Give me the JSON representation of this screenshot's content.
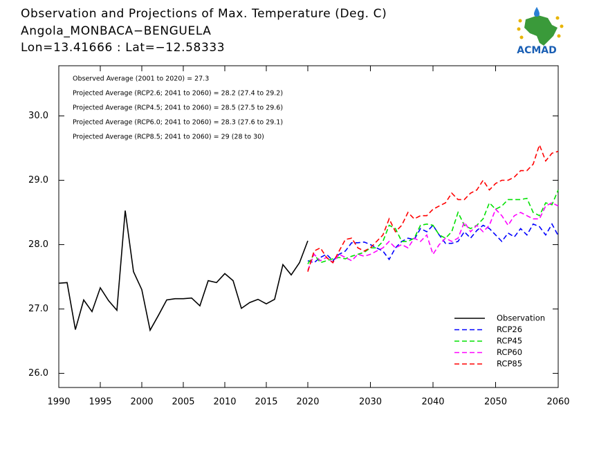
{
  "chart_data": {
    "type": "line",
    "title": [
      "Observation and Projections of Max. Temperature (Deg. C)",
      "Angola_MONBACA−BENGUELA",
      "Lon=13.41666 : Lat=−12.58333"
    ],
    "annotations": [
      "Observed Average (2001 to 2020) = 27.3",
      "Projected Average (RCP2.6; 2041 to 2060) = 28.2 (27.4 to 29.2)",
      "Projected Average (RCP4.5; 2041 to 2060) = 28.5 (27.5 to 29.6)",
      "Projected Average (RCP6.0; 2041 to 2060) = 28.3 (27.6 to 29.1)",
      "Projected Average (RCP8.5; 2041 to 2060) = 29 (28 to 30)"
    ],
    "logo": "ACMAD",
    "xlim": [
      1990,
      2060
    ],
    "xbreak": 2020,
    "xticks": [
      1990,
      1995,
      2000,
      2005,
      2010,
      2015,
      2020,
      2030,
      2040,
      2050,
      2060
    ],
    "ylim": [
      25.78,
      30.78
    ],
    "yticks": [
      {
        "value": 26,
        "label": "26.0"
      },
      {
        "value": 27,
        "label": "27.0"
      },
      {
        "value": 28,
        "label": "28.0"
      },
      {
        "value": 29,
        "label": "29.0"
      },
      {
        "value": 30,
        "label": "30.0"
      }
    ],
    "legend": "lower right",
    "series": [
      {
        "name": "Observation",
        "color": "#000000",
        "dashed": false,
        "x": [
          1990,
          1991,
          1992,
          1993,
          1994,
          1995,
          1996,
          1997,
          1998,
          1999,
          2000,
          2001,
          2002,
          2003,
          2004,
          2005,
          2006,
          2007,
          2008,
          2009,
          2010,
          2011,
          2012,
          2013,
          2014,
          2015,
          2016,
          2017,
          2018,
          2019,
          2020
        ],
        "values": [
          27.4,
          27.41,
          26.68,
          27.14,
          26.96,
          27.33,
          27.13,
          26.98,
          28.53,
          27.58,
          27.3,
          26.67,
          26.9,
          27.14,
          27.16,
          27.16,
          27.17,
          27.05,
          27.44,
          27.41,
          27.55,
          27.44,
          27.01,
          27.1,
          27.15,
          27.08,
          27.15,
          27.69,
          27.53,
          27.72,
          28.06
        ]
      },
      {
        "name": "RCP26",
        "color": "#0000ff",
        "dashed": true,
        "x": [
          2020,
          2021,
          2022,
          2023,
          2024,
          2025,
          2026,
          2027,
          2028,
          2029,
          2030,
          2031,
          2032,
          2033,
          2034,
          2035,
          2036,
          2037,
          2038,
          2039,
          2040,
          2041,
          2042,
          2043,
          2044,
          2045,
          2046,
          2047,
          2048,
          2049,
          2050,
          2051,
          2052,
          2053,
          2054,
          2055,
          2056,
          2057,
          2058,
          2059,
          2060
        ],
        "values": [
          27.75,
          27.72,
          27.8,
          27.85,
          27.75,
          27.85,
          27.9,
          28.03,
          28.03,
          28.04,
          28.0,
          27.95,
          27.9,
          27.77,
          27.95,
          28.05,
          28.1,
          28.08,
          28.25,
          28.2,
          28.3,
          28.15,
          28.02,
          28.02,
          28.05,
          28.2,
          28.1,
          28.22,
          28.3,
          28.25,
          28.15,
          28.05,
          28.18,
          28.12,
          28.25,
          28.15,
          28.32,
          28.28,
          28.15,
          28.32,
          28.14
        ]
      },
      {
        "name": "RCP45",
        "color": "#00e000",
        "dashed": true,
        "x": [
          2020,
          2021,
          2022,
          2023,
          2024,
          2025,
          2026,
          2027,
          2028,
          2029,
          2030,
          2031,
          2032,
          2033,
          2034,
          2035,
          2036,
          2037,
          2038,
          2039,
          2040,
          2041,
          2042,
          2043,
          2044,
          2045,
          2046,
          2047,
          2048,
          2049,
          2050,
          2051,
          2052,
          2053,
          2054,
          2055,
          2056,
          2057,
          2058,
          2059,
          2060
        ],
        "values": [
          27.7,
          27.85,
          27.72,
          27.75,
          27.78,
          27.8,
          27.78,
          27.82,
          27.85,
          27.88,
          27.95,
          27.95,
          28.05,
          28.3,
          28.25,
          28.05,
          28.05,
          28.1,
          28.3,
          28.32,
          28.3,
          28.15,
          28.1,
          28.2,
          28.5,
          28.3,
          28.25,
          28.3,
          28.4,
          28.65,
          28.55,
          28.6,
          28.7,
          28.7,
          28.7,
          28.72,
          28.5,
          28.45,
          28.65,
          28.62,
          28.85
        ]
      },
      {
        "name": "RCP60",
        "color": "#ff00ff",
        "dashed": true,
        "x": [
          2020,
          2021,
          2022,
          2023,
          2024,
          2025,
          2026,
          2027,
          2028,
          2029,
          2030,
          2031,
          2032,
          2033,
          2034,
          2035,
          2036,
          2037,
          2038,
          2039,
          2040,
          2041,
          2042,
          2043,
          2044,
          2045,
          2046,
          2047,
          2048,
          2049,
          2050,
          2051,
          2052,
          2053,
          2054,
          2055,
          2056,
          2057,
          2058,
          2059,
          2060
        ],
        "values": [
          27.6,
          27.85,
          27.75,
          27.8,
          27.72,
          27.85,
          27.8,
          27.75,
          27.85,
          27.82,
          27.85,
          27.9,
          27.95,
          28.05,
          27.95,
          28.0,
          27.95,
          28.1,
          28.05,
          28.15,
          27.85,
          28.0,
          28.1,
          28.05,
          28.1,
          28.35,
          28.2,
          28.3,
          28.2,
          28.3,
          28.55,
          28.45,
          28.3,
          28.45,
          28.5,
          28.45,
          28.4,
          28.4,
          28.6,
          28.65,
          28.6
        ]
      },
      {
        "name": "RCP85",
        "color": "#ff0000",
        "dashed": true,
        "x": [
          2020,
          2021,
          2022,
          2023,
          2024,
          2025,
          2026,
          2027,
          2028,
          2029,
          2030,
          2031,
          2032,
          2033,
          2034,
          2035,
          2036,
          2037,
          2038,
          2039,
          2040,
          2041,
          2042,
          2043,
          2044,
          2045,
          2046,
          2047,
          2048,
          2049,
          2050,
          2051,
          2052,
          2053,
          2054,
          2055,
          2056,
          2057,
          2058,
          2059,
          2060
        ],
        "values": [
          27.58,
          27.9,
          27.95,
          27.8,
          27.72,
          27.9,
          28.08,
          28.1,
          27.95,
          27.9,
          27.95,
          28.05,
          28.15,
          28.4,
          28.2,
          28.3,
          28.5,
          28.4,
          28.45,
          28.45,
          28.55,
          28.6,
          28.65,
          28.8,
          28.7,
          28.7,
          28.8,
          28.85,
          29.0,
          28.85,
          28.95,
          29.0,
          29.0,
          29.05,
          29.15,
          29.15,
          29.25,
          29.55,
          29.3,
          29.42,
          29.45
        ]
      }
    ]
  }
}
